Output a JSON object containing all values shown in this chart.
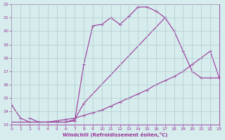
{
  "background_color": "#d6eced",
  "grid_color": "#b0cccc",
  "line_color": "#993399",
  "xlim": [
    0,
    23
  ],
  "ylim": [
    13,
    22
  ],
  "yticks": [
    13,
    14,
    15,
    16,
    17,
    18,
    19,
    20,
    21,
    22
  ],
  "xticks": [
    0,
    1,
    2,
    3,
    4,
    5,
    6,
    7,
    8,
    9,
    10,
    11,
    12,
    13,
    14,
    15,
    16,
    17,
    18,
    19,
    20,
    21,
    22,
    23
  ],
  "xlabel": "Windchill (Refroidissement éolien,°C)",
  "series": [
    {
      "x": [
        0,
        1,
        2,
        3,
        4,
        5,
        6,
        7,
        8,
        9,
        10,
        11,
        12,
        13,
        14,
        15,
        16,
        17
      ],
      "y": [
        14.5,
        13.5,
        13.2,
        13.2,
        13.2,
        13.2,
        13.2,
        13.3,
        17.5,
        20.4,
        20.5,
        21.0,
        20.5,
        21.1,
        21.8,
        21.8,
        21.5,
        21.0
      ]
    },
    {
      "x": [
        2,
        3,
        4,
        5,
        6,
        7,
        8,
        17,
        18,
        19,
        20,
        21,
        22,
        23
      ],
      "y": [
        13.5,
        13.2,
        13.2,
        13.2,
        13.2,
        13.4,
        14.6,
        21.0,
        20.0,
        18.5,
        17.0,
        16.5,
        16.5,
        16.5
      ]
    },
    {
      "x": [
        0,
        1,
        2,
        3,
        4,
        5,
        6,
        7,
        8,
        9,
        10,
        11,
        12,
        13,
        14,
        15,
        16,
        17,
        18,
        19,
        20,
        21,
        22,
        23
      ],
      "y": [
        13.2,
        13.2,
        13.2,
        13.2,
        13.2,
        13.3,
        13.4,
        13.5,
        13.7,
        13.9,
        14.1,
        14.4,
        14.7,
        15.0,
        15.3,
        15.6,
        16.0,
        16.3,
        16.6,
        17.0,
        17.5,
        18.0,
        18.5,
        16.5
      ]
    }
  ]
}
